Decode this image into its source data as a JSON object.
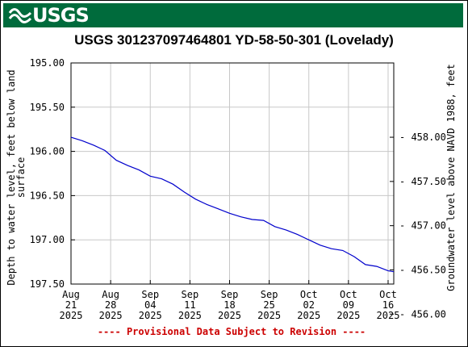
{
  "header": {
    "logo_text": "USGS"
  },
  "footer": {
    "provisional_text": "---- Provisional Data Subject to Revision ----"
  },
  "colors": {
    "banner": "#006b3c",
    "line": "#0000cc",
    "provisional": "#cc0000"
  },
  "chart_data": {
    "type": "line",
    "title": "USGS 301237097464801 YD-58-50-301 (Lovelady)",
    "ylabel": "Depth to water level, feet below land surface",
    "ylabel_lines": [
      "Depth to water level, feet below land",
      "surface"
    ],
    "y2label": "Groundwater level above NAVD 1988, feet",
    "ylim": [
      195.0,
      197.5
    ],
    "y_inverted": true,
    "y_ticks": [
      "195.00",
      "195.50",
      "196.00",
      "196.50",
      "197.00",
      "197.50"
    ],
    "y2_ticks": [
      "458.00",
      "457.50",
      "457.00",
      "456.50",
      "456.00"
    ],
    "x_ticks": [
      {
        "date": "2025-08-21",
        "label": [
          "Aug",
          "21",
          "2025"
        ]
      },
      {
        "date": "2025-08-28",
        "label": [
          "Aug",
          "28",
          "2025"
        ]
      },
      {
        "date": "2025-09-04",
        "label": [
          "Sep",
          "04",
          "2025"
        ]
      },
      {
        "date": "2025-09-11",
        "label": [
          "Sep",
          "11",
          "2025"
        ]
      },
      {
        "date": "2025-09-18",
        "label": [
          "Sep",
          "18",
          "2025"
        ]
      },
      {
        "date": "2025-09-25",
        "label": [
          "Sep",
          "25",
          "2025"
        ]
      },
      {
        "date": "2025-10-02",
        "label": [
          "Oct",
          "02",
          "2025"
        ]
      },
      {
        "date": "2025-10-09",
        "label": [
          "Oct",
          "09",
          "2025"
        ]
      },
      {
        "date": "2025-10-16",
        "label": [
          "Oct",
          "16",
          "2025"
        ]
      }
    ],
    "xlim": [
      "2025-08-21",
      "2025-10-17"
    ],
    "grid": true,
    "series": [
      {
        "x": [
          "2025-08-21",
          "2025-08-23",
          "2025-08-25",
          "2025-08-27",
          "2025-08-29",
          "2025-08-31",
          "2025-09-02",
          "2025-09-04",
          "2025-09-06",
          "2025-09-08",
          "2025-09-10",
          "2025-09-12",
          "2025-09-14",
          "2025-09-16",
          "2025-09-18",
          "2025-09-20",
          "2025-09-22",
          "2025-09-24",
          "2025-09-26",
          "2025-09-28",
          "2025-09-30",
          "2025-10-02",
          "2025-10-04",
          "2025-10-06",
          "2025-10-08",
          "2025-10-10",
          "2025-10-12",
          "2025-10-14",
          "2025-10-16",
          "2025-10-17"
        ],
        "y": [
          195.84,
          195.88,
          195.93,
          195.99,
          196.1,
          196.16,
          196.21,
          196.28,
          196.31,
          196.37,
          196.46,
          196.54,
          196.6,
          196.65,
          196.7,
          196.74,
          196.77,
          196.78,
          196.85,
          196.89,
          196.94,
          197.0,
          197.06,
          197.1,
          197.12,
          197.19,
          197.28,
          197.3,
          197.35,
          197.36
        ]
      }
    ]
  }
}
